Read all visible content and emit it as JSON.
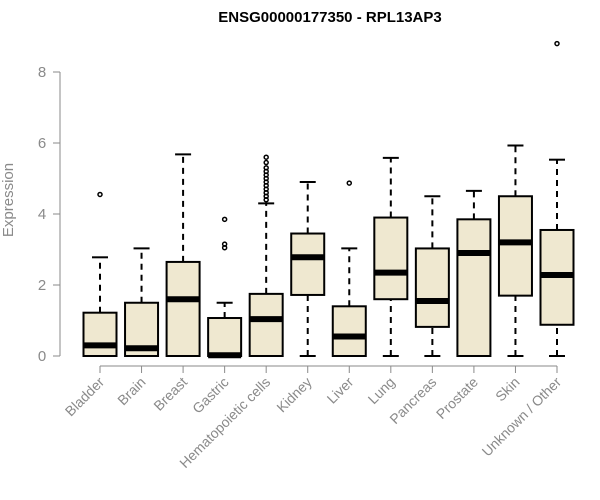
{
  "chart_data": {
    "type": "boxplot",
    "title": "ENSG00000177350 - RPL13AP3",
    "xlabel": "",
    "ylabel": "Expression",
    "ylim": [
      0,
      8
    ],
    "yticks": [
      0,
      2,
      4,
      6,
      8
    ],
    "grid": false,
    "legend": "none",
    "colors": {
      "box_fill": "#efe8d0",
      "stroke": "#000000",
      "axis": "#8a8a8a",
      "title": "#000000"
    },
    "categories": [
      "Bladder",
      "Brain",
      "Breast",
      "Gastric",
      "Hematopoietic cells",
      "Kidney",
      "Liver",
      "Lung",
      "Pancreas",
      "Prostate",
      "Skin",
      "Unknown / Other"
    ],
    "boxes": [
      {
        "category": "Bladder",
        "whisker_low": 0,
        "q1": 0.0,
        "median": 0.3,
        "q3": 1.22,
        "whisker_high": 2.78,
        "outliers": [
          4.55
        ]
      },
      {
        "category": "Brain",
        "whisker_low": 0,
        "q1": 0.0,
        "median": 0.22,
        "q3": 1.5,
        "whisker_high": 3.03,
        "outliers": []
      },
      {
        "category": "Breast",
        "whisker_low": 0,
        "q1": 0.0,
        "median": 1.6,
        "q3": 2.65,
        "whisker_high": 5.68,
        "outliers": []
      },
      {
        "category": "Gastric",
        "whisker_low": 0,
        "q1": 0.0,
        "median": 0.02,
        "q3": 1.07,
        "whisker_high": 1.5,
        "outliers": [
          3.05,
          3.15,
          3.85
        ]
      },
      {
        "category": "Hematopoietic cells",
        "whisker_low": 0,
        "q1": 0.0,
        "median": 1.04,
        "q3": 1.75,
        "whisker_high": 4.3,
        "outliers": [
          4.4,
          4.5,
          4.6,
          4.7,
          4.8,
          4.9,
          5.0,
          5.1,
          5.2,
          5.3,
          5.45,
          5.6
        ]
      },
      {
        "category": "Kidney",
        "whisker_low": 0,
        "q1": 1.72,
        "median": 2.78,
        "q3": 3.45,
        "whisker_high": 4.9,
        "outliers": []
      },
      {
        "category": "Liver",
        "whisker_low": 0,
        "q1": 0.0,
        "median": 0.55,
        "q3": 1.4,
        "whisker_high": 3.03,
        "outliers": [
          4.87
        ]
      },
      {
        "category": "Lung",
        "whisker_low": 0,
        "q1": 1.6,
        "median": 2.35,
        "q3": 3.9,
        "whisker_high": 5.58,
        "outliers": []
      },
      {
        "category": "Pancreas",
        "whisker_low": 0,
        "q1": 0.82,
        "median": 1.55,
        "q3": 3.03,
        "whisker_high": 4.5,
        "outliers": []
      },
      {
        "category": "Prostate",
        "whisker_low": 0,
        "q1": 0.0,
        "median": 2.9,
        "q3": 3.85,
        "whisker_high": 4.65,
        "outliers": []
      },
      {
        "category": "Skin",
        "whisker_low": 0,
        "q1": 1.7,
        "median": 3.2,
        "q3": 4.5,
        "whisker_high": 5.93,
        "outliers": []
      },
      {
        "category": "Unknown / Other",
        "whisker_low": 0,
        "q1": 0.88,
        "median": 2.28,
        "q3": 3.55,
        "whisker_high": 5.53,
        "outliers": [
          8.8
        ]
      }
    ]
  }
}
